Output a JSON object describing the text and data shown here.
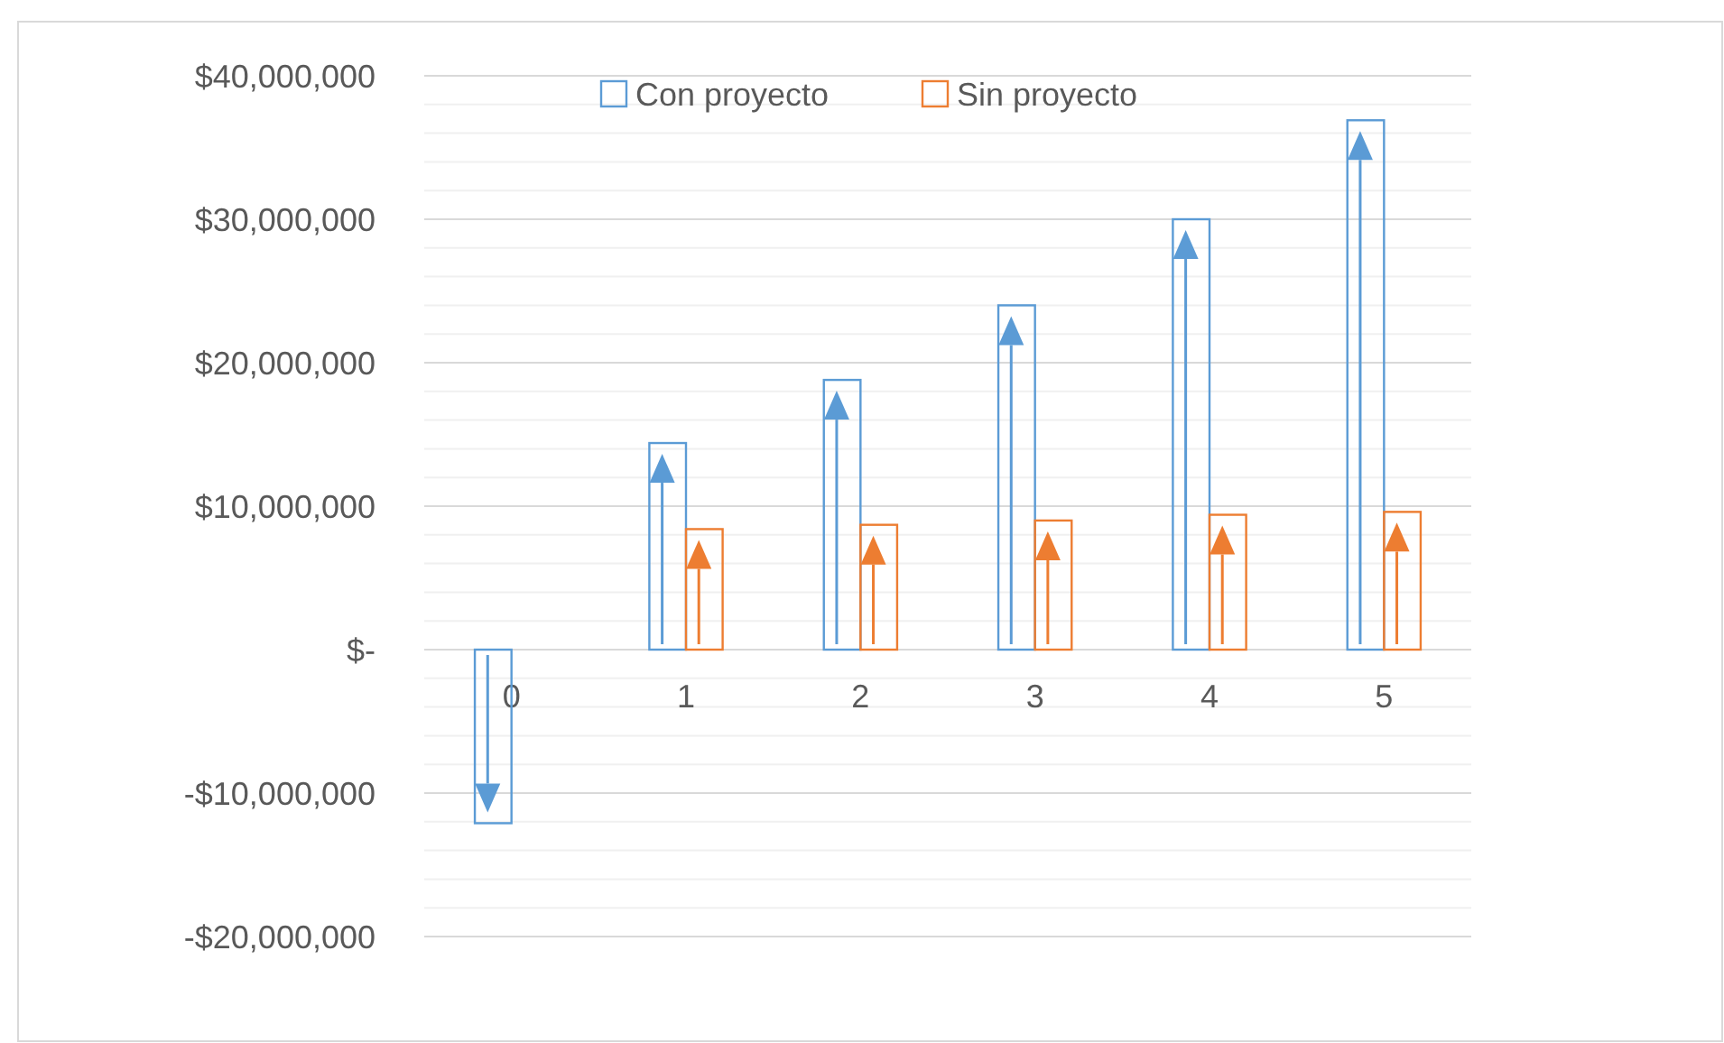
{
  "chart_data": {
    "type": "bar",
    "categories": [
      "0",
      "1",
      "2",
      "3",
      "4",
      "5"
    ],
    "series": [
      {
        "name": "Con proyecto",
        "color": "#5b9bd5",
        "values": [
          -12100000.0,
          14400000.0,
          18800000.0,
          24000000.0,
          30000000.0,
          36900000.0
        ]
      },
      {
        "name": "Sin proyecto",
        "color": "#ed7d31",
        "values": [
          null,
          8400000.0,
          8700000.0,
          9000000.0,
          9400000.0,
          9600000.0
        ]
      }
    ],
    "ylim": [
      -20000000,
      40000000
    ],
    "yticks": [
      {
        "value": -20000000,
        "label": "-$20,000,000"
      },
      {
        "value": -10000000,
        "label": "-$10,000,000"
      },
      {
        "value": 0,
        "label": "$-"
      },
      {
        "value": 10000000,
        "label": "$10,000,000"
      },
      {
        "value": 20000000,
        "label": "$20,000,000"
      },
      {
        "value": 30000000,
        "label": "$30,000,000"
      },
      {
        "value": 40000000,
        "label": "$40,000,000"
      }
    ],
    "grid": true,
    "legend": "top"
  }
}
